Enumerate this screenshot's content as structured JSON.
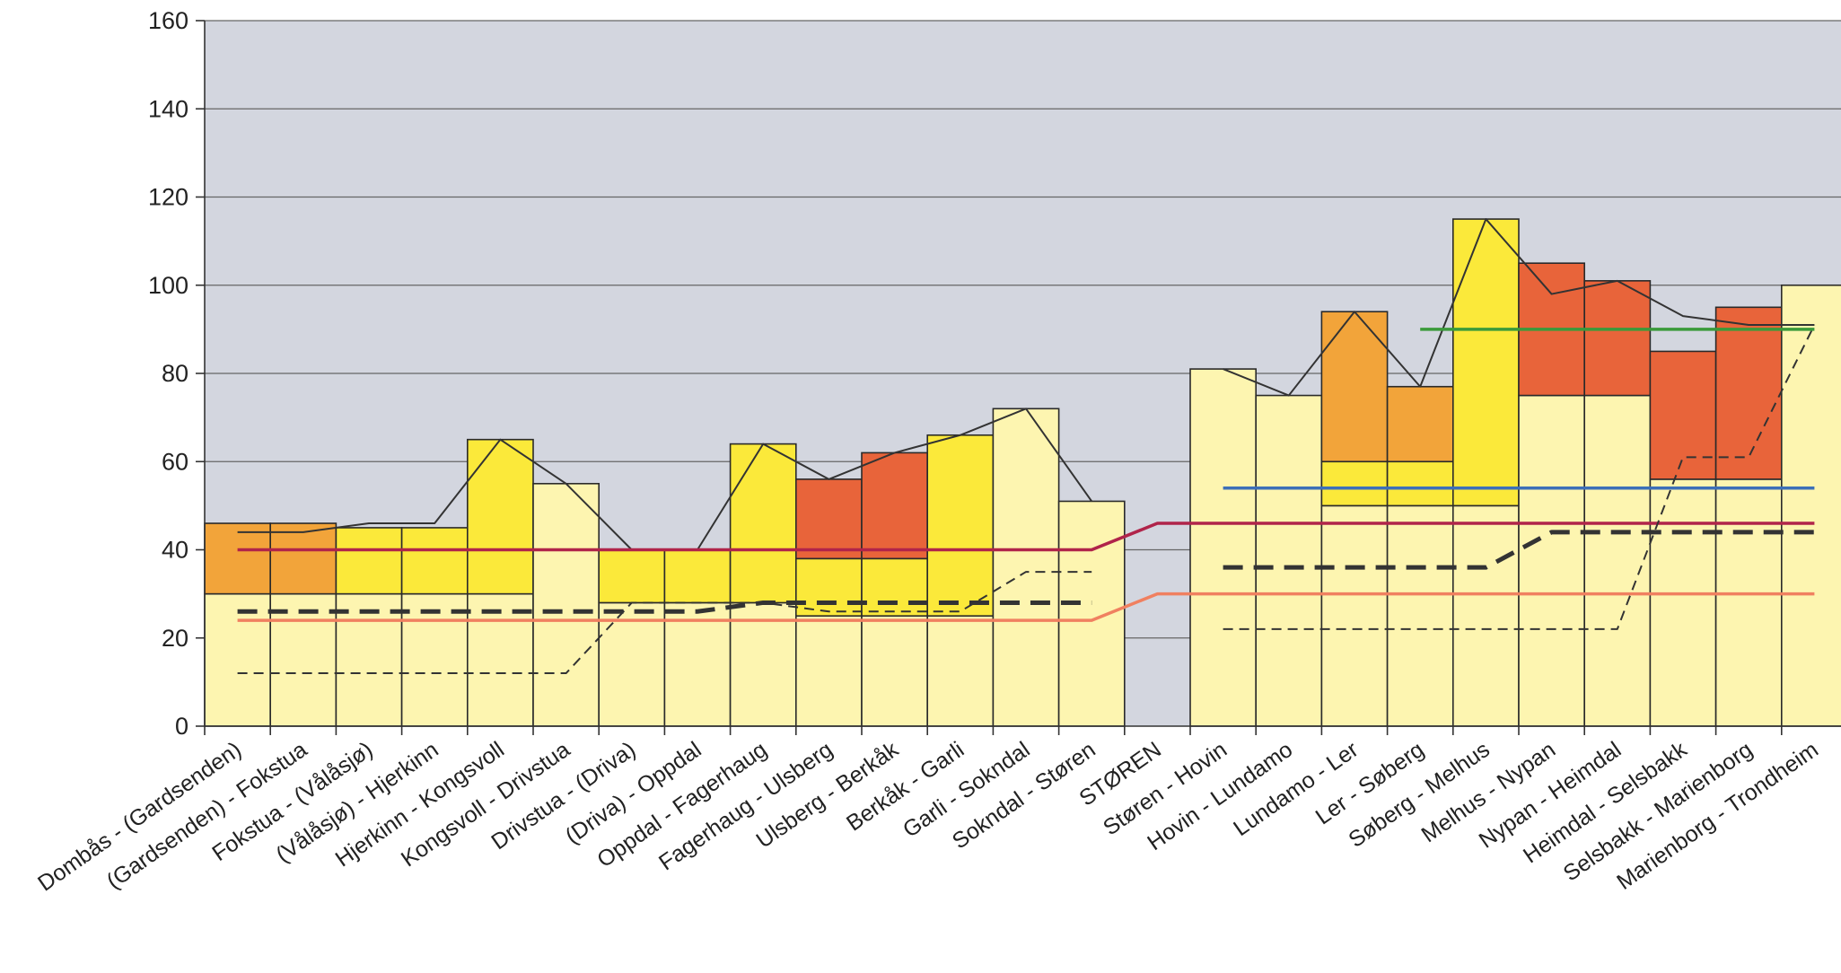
{
  "chart_data": {
    "type": "bar",
    "title": "",
    "xlabel": "",
    "ylabel": "",
    "ylim": [
      0,
      160
    ],
    "yticks": [
      0,
      20,
      40,
      60,
      80,
      100,
      120,
      140,
      160
    ],
    "grid": true,
    "legend": "none",
    "categories": [
      "Dombås - (Gardsenden)",
      "(Gardsenden) - Fokstua",
      "Fokstua - (Vålåsjø)",
      "(Vålåsjø) - Hjerkinn",
      "Hjerkinn - Kongsvoll",
      "Kongsvoll - Drivstua",
      "Drivstua - (Driva)",
      "(Driva) - Oppdal",
      "Oppdal - Fagerhaug",
      "Fagerhaug - Ulsberg",
      "Ulsberg - Berkåk",
      "Berkåk - Garli",
      "Garli - Sokndal",
      "Sokndal - Støren",
      "STØREN",
      "Støren - Hovin",
      "Hovin - Lundamo",
      "Lundamo - Ler",
      "Ler - Søberg",
      "Søberg - Melhus",
      "Melhus - Nypan",
      "Nypan - Heimdal",
      "Heimdal - Selsbakk",
      "Selsbakk - Marienborg",
      "Marienborg - Trondheim"
    ],
    "bar_segments": [
      [
        {
          "v": 30,
          "c": "light"
        },
        {
          "v": 16,
          "c": "orange"
        }
      ],
      [
        {
          "v": 30,
          "c": "light"
        },
        {
          "v": 16,
          "c": "orange"
        }
      ],
      [
        {
          "v": 30,
          "c": "light"
        },
        {
          "v": 15,
          "c": "yellow"
        }
      ],
      [
        {
          "v": 30,
          "c": "light"
        },
        {
          "v": 15,
          "c": "yellow"
        }
      ],
      [
        {
          "v": 30,
          "c": "light"
        },
        {
          "v": 35,
          "c": "yellow"
        }
      ],
      [
        {
          "v": 55,
          "c": "light"
        }
      ],
      [
        {
          "v": 28,
          "c": "light"
        },
        {
          "v": 12,
          "c": "yellow"
        }
      ],
      [
        {
          "v": 28,
          "c": "light"
        },
        {
          "v": 12,
          "c": "yellow"
        }
      ],
      [
        {
          "v": 28,
          "c": "light"
        },
        {
          "v": 36,
          "c": "yellow"
        }
      ],
      [
        {
          "v": 25,
          "c": "light"
        },
        {
          "v": 13,
          "c": "yellow"
        },
        {
          "v": 18,
          "c": "red"
        }
      ],
      [
        {
          "v": 25,
          "c": "light"
        },
        {
          "v": 13,
          "c": "yellow"
        },
        {
          "v": 24,
          "c": "red"
        }
      ],
      [
        {
          "v": 25,
          "c": "light"
        },
        {
          "v": 41,
          "c": "yellow"
        }
      ],
      [
        {
          "v": 72,
          "c": "light"
        }
      ],
      [
        {
          "v": 51,
          "c": "light"
        }
      ],
      [],
      [
        {
          "v": 81,
          "c": "light"
        }
      ],
      [
        {
          "v": 75,
          "c": "light"
        }
      ],
      [
        {
          "v": 50,
          "c": "light"
        },
        {
          "v": 10,
          "c": "yellow"
        },
        {
          "v": 34,
          "c": "orange"
        }
      ],
      [
        {
          "v": 50,
          "c": "light"
        },
        {
          "v": 10,
          "c": "yellow"
        },
        {
          "v": 17,
          "c": "orange"
        }
      ],
      [
        {
          "v": 50,
          "c": "light"
        },
        {
          "v": 65,
          "c": "yellow"
        }
      ],
      [
        {
          "v": 75,
          "c": "light"
        },
        {
          "v": 30,
          "c": "red"
        }
      ],
      [
        {
          "v": 75,
          "c": "light"
        },
        {
          "v": 26,
          "c": "red"
        }
      ],
      [
        {
          "v": 56,
          "c": "light"
        },
        {
          "v": 29,
          "c": "red"
        }
      ],
      [
        {
          "v": 56,
          "c": "light"
        },
        {
          "v": 39,
          "c": "red"
        }
      ],
      [
        {
          "v": 100,
          "c": "light"
        }
      ]
    ],
    "lines": [
      {
        "key": "black_thin",
        "style": "solid-thin",
        "color": "#333333",
        "x": [
          0.5,
          1.5,
          2.5,
          3.5,
          4.5,
          5.5,
          6.5,
          7.5,
          8.5,
          9.5,
          10.5,
          11.5,
          12.5,
          13.5
        ],
        "y": [
          44,
          44,
          46,
          46,
          65,
          55,
          40,
          40,
          64,
          56,
          62,
          66,
          72,
          51
        ]
      },
      {
        "key": "black_thin_2",
        "style": "solid-thin",
        "color": "#333333",
        "x": [
          15.5,
          16.5,
          17.5,
          18.5,
          19.5,
          20.5,
          21.5,
          22.5,
          23.5,
          24.5
        ],
        "y": [
          81,
          75,
          94,
          77,
          115,
          98,
          101,
          93,
          91,
          91
        ]
      },
      {
        "key": "crimson",
        "style": "solid",
        "color": "#b0244a",
        "x": [
          0.5,
          13.5,
          14.5,
          24.5
        ],
        "y": [
          40,
          40,
          46,
          46
        ]
      },
      {
        "key": "salmon",
        "style": "solid",
        "color": "#f08060",
        "x": [
          0.5,
          13.5,
          14.5,
          24.5
        ],
        "y": [
          24,
          24,
          30,
          30
        ]
      },
      {
        "key": "dashed_thick",
        "style": "dashed-thick",
        "color": "#333333",
        "x": [
          0.5,
          7.5,
          8.5,
          13.5
        ],
        "y": [
          26,
          26,
          28,
          28
        ]
      },
      {
        "key": "dashed_thick_2",
        "style": "dashed-thick",
        "color": "#333333",
        "x": [
          15.5,
          19.5,
          20.5,
          24.5
        ],
        "y": [
          36,
          36,
          44,
          44
        ]
      },
      {
        "key": "dashed_thin",
        "style": "dashed-thin",
        "color": "#333333",
        "x": [
          0.5,
          5.5,
          6.5,
          8.5,
          9.5,
          11.5,
          12.5,
          13.5
        ],
        "y": [
          12,
          12,
          28,
          28,
          26,
          26,
          35,
          35
        ]
      },
      {
        "key": "dashed_thin_2",
        "style": "dashed-thin",
        "color": "#333333",
        "x": [
          15.5,
          21.5,
          22.5,
          23.5,
          24.5
        ],
        "y": [
          22,
          22,
          61,
          61,
          91
        ]
      },
      {
        "key": "blue",
        "style": "solid",
        "color": "#3c6fb8",
        "x": [
          15.5,
          24.5
        ],
        "y": [
          54,
          54
        ]
      },
      {
        "key": "green",
        "style": "solid",
        "color": "#3a9a3a",
        "x": [
          18.5,
          24.5
        ],
        "y": [
          90,
          90
        ]
      }
    ],
    "colors": {
      "light": "#fdf5b0",
      "yellow": "#fbe93a",
      "orange": "#f2a43a",
      "red": "#e8643a",
      "plot_bg": "#d3d6df",
      "grid": "#666666",
      "bar_border": "#2a2a2a"
    }
  }
}
